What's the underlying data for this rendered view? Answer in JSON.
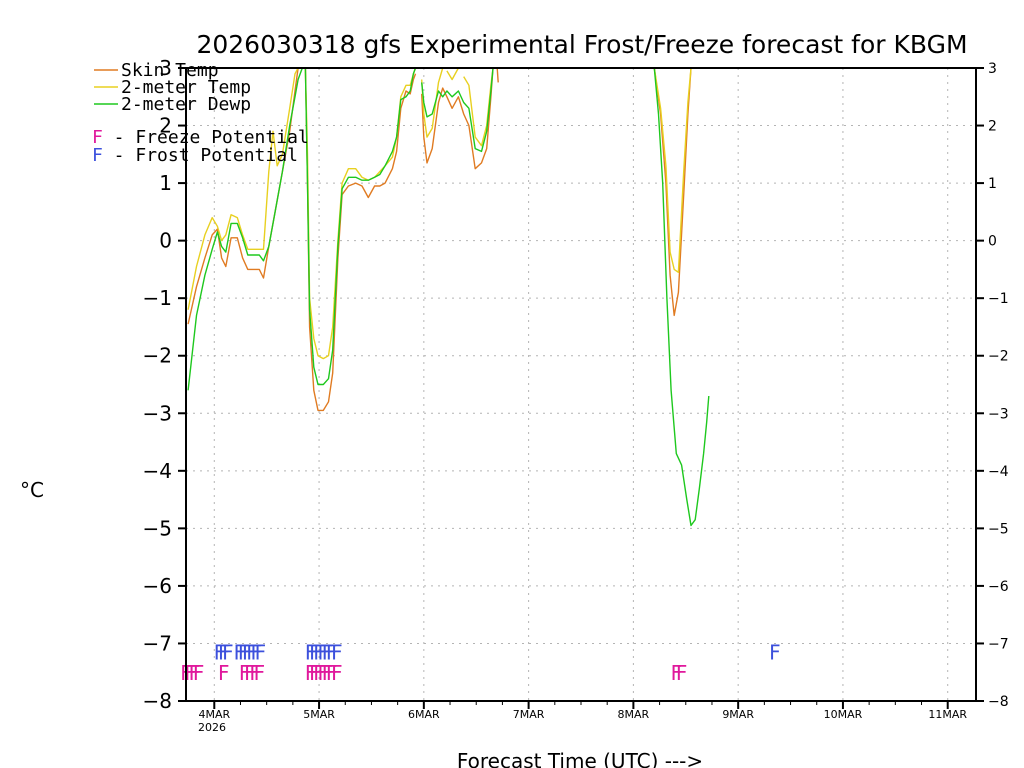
{
  "chart_data": {
    "type": "line",
    "title": "2026030318 gfs Experimental Frost/Freeze forecast for KBGM",
    "xlabel": "Forecast Time (UTC) --->",
    "ylabel": "°C",
    "ylim": [
      -8,
      3
    ],
    "xlim": [
      -0.27,
      7.27
    ],
    "yticks": [
      3,
      2,
      1,
      0,
      -1,
      -2,
      -3,
      -4,
      -5,
      -6,
      -7,
      -8
    ],
    "ytick_labels": [
      "3",
      "2",
      "1",
      "0",
      "−1",
      "−2",
      "−3",
      "−4",
      "−5",
      "−6",
      "−7",
      "−8"
    ],
    "xticks": [
      0,
      1,
      2,
      3,
      4,
      5,
      6,
      7
    ],
    "xtick_labels": [
      "4MAR",
      "5MAR",
      "6MAR",
      "7MAR",
      "8MAR",
      "9MAR",
      "10MAR",
      "11MAR"
    ],
    "x_year_label": "2026",
    "grid": true,
    "legend": [
      {
        "label": "Skin Temp",
        "color": "#e07b22"
      },
      {
        "label": "2-meter Temp",
        "color": "#e8d020"
      },
      {
        "label": "2-meter Dewp",
        "color": "#1ec81e"
      }
    ],
    "potential_legend": [
      {
        "letter": "F",
        "text": " - Freeze Potential",
        "color": "#e0189c"
      },
      {
        "letter": "F",
        "text": " - Frost Potential",
        "color": "#3c50dc"
      }
    ],
    "series": [
      {
        "name": "Skin Temp",
        "color": "#e07b22",
        "segments": [
          [
            [
              -0.25,
              -1.45
            ],
            [
              -0.17,
              -0.8
            ],
            [
              -0.09,
              -0.3
            ],
            [
              -0.02,
              0.1
            ],
            [
              0.03,
              0.2
            ],
            [
              0.07,
              -0.3
            ],
            [
              0.11,
              -0.45
            ],
            [
              0.16,
              0.05
            ],
            [
              0.22,
              0.05
            ],
            [
              0.27,
              -0.3
            ],
            [
              0.32,
              -0.5
            ],
            [
              0.38,
              -0.5
            ],
            [
              0.43,
              -0.5
            ],
            [
              0.47,
              -0.65
            ],
            [
              0.52,
              -0.1
            ],
            [
              0.58,
              0.5
            ],
            [
              0.65,
              1.2
            ],
            [
              0.72,
              1.9
            ],
            [
              0.77,
              2.6
            ],
            [
              0.8,
              3.0
            ]
          ],
          [
            [
              0.87,
              3.0
            ],
            [
              0.89,
              1.0
            ],
            [
              0.91,
              -1.5
            ],
            [
              0.95,
              -2.6
            ],
            [
              0.99,
              -2.95
            ],
            [
              1.04,
              -2.95
            ],
            [
              1.09,
              -2.8
            ],
            [
              1.13,
              -2.3
            ],
            [
              1.18,
              -0.3
            ],
            [
              1.22,
              0.8
            ],
            [
              1.28,
              0.95
            ],
            [
              1.35,
              1.0
            ],
            [
              1.41,
              0.95
            ],
            [
              1.47,
              0.75
            ],
            [
              1.53,
              0.95
            ],
            [
              1.58,
              0.95
            ],
            [
              1.63,
              1.0
            ],
            [
              1.7,
              1.25
            ],
            [
              1.74,
              1.55
            ],
            [
              1.78,
              2.3
            ],
            [
              1.83,
              2.6
            ],
            [
              1.87,
              2.55
            ],
            [
              1.9,
              2.8
            ],
            [
              1.92,
              2.9
            ]
          ],
          [
            [
              1.98,
              2.55
            ],
            [
              2.0,
              1.8
            ],
            [
              2.03,
              1.35
            ],
            [
              2.08,
              1.6
            ],
            [
              2.14,
              2.4
            ],
            [
              2.18,
              2.65
            ],
            [
              2.22,
              2.5
            ],
            [
              2.27,
              2.3
            ],
            [
              2.33,
              2.5
            ],
            [
              2.38,
              2.2
            ],
            [
              2.43,
              2.0
            ],
            [
              2.49,
              1.25
            ],
            [
              2.55,
              1.35
            ],
            [
              2.6,
              1.6
            ],
            [
              2.64,
              2.5
            ],
            [
              2.66,
              3.0
            ]
          ],
          [
            [
              2.7,
              3.0
            ],
            [
              2.71,
              2.75
            ]
          ],
          [
            [
              4.2,
              3.0
            ],
            [
              4.26,
              2.2
            ],
            [
              4.31,
              1.0
            ],
            [
              4.35,
              -0.6
            ],
            [
              4.39,
              -1.3
            ],
            [
              4.43,
              -0.9
            ],
            [
              4.48,
              0.8
            ],
            [
              4.52,
              2.2
            ],
            [
              4.55,
              3.0
            ]
          ]
        ]
      },
      {
        "name": "2-meter Temp",
        "color": "#e8d020",
        "segments": [
          [
            [
              -0.25,
              -1.2
            ],
            [
              -0.17,
              -0.45
            ],
            [
              -0.09,
              0.1
            ],
            [
              -0.02,
              0.4
            ],
            [
              0.03,
              0.25
            ],
            [
              0.07,
              0.0
            ],
            [
              0.11,
              0.1
            ],
            [
              0.16,
              0.45
            ],
            [
              0.22,
              0.4
            ],
            [
              0.27,
              0.1
            ],
            [
              0.32,
              -0.15
            ],
            [
              0.38,
              -0.15
            ],
            [
              0.43,
              -0.15
            ],
            [
              0.47,
              -0.15
            ],
            [
              0.52,
              1.2
            ],
            [
              0.56,
              1.9
            ],
            [
              0.6,
              1.3
            ],
            [
              0.65,
              1.5
            ],
            [
              0.72,
              2.3
            ],
            [
              0.77,
              2.9
            ],
            [
              0.8,
              3.0
            ]
          ],
          [
            [
              0.87,
              3.0
            ],
            [
              0.89,
              1.5
            ],
            [
              0.91,
              -1.0
            ],
            [
              0.95,
              -1.7
            ],
            [
              0.99,
              -2.0
            ],
            [
              1.04,
              -2.05
            ],
            [
              1.09,
              -2.0
            ],
            [
              1.13,
              -1.5
            ],
            [
              1.18,
              0.0
            ],
            [
              1.22,
              1.0
            ],
            [
              1.28,
              1.25
            ],
            [
              1.35,
              1.25
            ],
            [
              1.41,
              1.1
            ],
            [
              1.47,
              1.05
            ],
            [
              1.53,
              1.1
            ],
            [
              1.58,
              1.2
            ],
            [
              1.63,
              1.3
            ],
            [
              1.7,
              1.45
            ],
            [
              1.74,
              1.8
            ],
            [
              1.78,
              2.5
            ],
            [
              1.83,
              2.7
            ],
            [
              1.87,
              2.7
            ],
            [
              1.9,
              2.9
            ],
            [
              1.92,
              3.0
            ]
          ],
          [
            [
              1.98,
              2.8
            ],
            [
              2.0,
              2.2
            ],
            [
              2.03,
              1.8
            ],
            [
              2.08,
              1.95
            ],
            [
              2.14,
              2.75
            ],
            [
              2.18,
              3.0
            ]
          ],
          [
            [
              2.22,
              2.95
            ],
            [
              2.27,
              2.8
            ],
            [
              2.33,
              3.0
            ]
          ],
          [
            [
              2.38,
              2.85
            ],
            [
              2.43,
              2.7
            ],
            [
              2.49,
              1.8
            ],
            [
              2.55,
              1.65
            ],
            [
              2.6,
              2.0
            ],
            [
              2.64,
              2.7
            ],
            [
              2.66,
              3.0
            ]
          ],
          [
            [
              4.2,
              3.0
            ],
            [
              4.26,
              2.3
            ],
            [
              4.31,
              1.3
            ],
            [
              4.35,
              -0.2
            ],
            [
              4.39,
              -0.5
            ],
            [
              4.43,
              -0.55
            ],
            [
              4.48,
              1.2
            ],
            [
              4.52,
              2.4
            ],
            [
              4.55,
              3.0
            ]
          ]
        ]
      },
      {
        "name": "2-meter Dewp",
        "color": "#1ec81e",
        "segments": [
          [
            [
              -0.25,
              -2.6
            ],
            [
              -0.17,
              -1.3
            ],
            [
              -0.09,
              -0.6
            ],
            [
              -0.02,
              -0.15
            ],
            [
              0.03,
              0.15
            ],
            [
              0.07,
              -0.1
            ],
            [
              0.11,
              -0.2
            ],
            [
              0.16,
              0.3
            ],
            [
              0.22,
              0.3
            ],
            [
              0.27,
              0.05
            ],
            [
              0.32,
              -0.25
            ],
            [
              0.38,
              -0.25
            ],
            [
              0.43,
              -0.25
            ],
            [
              0.47,
              -0.35
            ],
            [
              0.52,
              -0.1
            ],
            [
              0.58,
              0.5
            ],
            [
              0.65,
              1.2
            ],
            [
              0.72,
              2.0
            ],
            [
              0.77,
              2.5
            ],
            [
              0.8,
              2.8
            ],
            [
              0.84,
              3.0
            ]
          ],
          [
            [
              0.87,
              3.0
            ],
            [
              0.89,
              1.0
            ],
            [
              0.91,
              -1.2
            ],
            [
              0.95,
              -2.2
            ],
            [
              0.99,
              -2.5
            ],
            [
              1.04,
              -2.5
            ],
            [
              1.09,
              -2.4
            ],
            [
              1.13,
              -1.9
            ],
            [
              1.18,
              -0.1
            ],
            [
              1.22,
              0.9
            ],
            [
              1.28,
              1.1
            ],
            [
              1.35,
              1.1
            ],
            [
              1.41,
              1.05
            ],
            [
              1.47,
              1.05
            ],
            [
              1.53,
              1.1
            ],
            [
              1.58,
              1.15
            ],
            [
              1.63,
              1.3
            ],
            [
              1.7,
              1.55
            ],
            [
              1.74,
              1.8
            ],
            [
              1.78,
              2.45
            ],
            [
              1.83,
              2.5
            ],
            [
              1.87,
              2.6
            ],
            [
              1.9,
              2.9
            ],
            [
              1.92,
              3.0
            ]
          ],
          [
            [
              1.98,
              2.75
            ],
            [
              2.0,
              2.4
            ],
            [
              2.03,
              2.15
            ],
            [
              2.08,
              2.2
            ],
            [
              2.14,
              2.6
            ],
            [
              2.18,
              2.5
            ],
            [
              2.22,
              2.6
            ],
            [
              2.27,
              2.5
            ],
            [
              2.33,
              2.6
            ],
            [
              2.38,
              2.4
            ],
            [
              2.43,
              2.3
            ],
            [
              2.49,
              1.6
            ],
            [
              2.55,
              1.55
            ],
            [
              2.6,
              1.9
            ],
            [
              2.64,
              2.6
            ],
            [
              2.66,
              3.0
            ]
          ],
          [
            [
              4.2,
              3.0
            ],
            [
              4.24,
              2.2
            ],
            [
              4.28,
              1.0
            ],
            [
              4.32,
              -1.0
            ],
            [
              4.36,
              -2.6
            ],
            [
              4.41,
              -3.7
            ],
            [
              4.46,
              -3.9
            ],
            [
              4.51,
              -4.5
            ],
            [
              4.55,
              -4.95
            ],
            [
              4.59,
              -4.85
            ],
            [
              4.63,
              -4.3
            ],
            [
              4.67,
              -3.7
            ],
            [
              4.7,
              -3.15
            ],
            [
              4.72,
              -2.7
            ]
          ]
        ]
      }
    ],
    "freeze_potential_marks": [
      -0.27,
      -0.23,
      -0.19,
      -0.15,
      0.09,
      0.29,
      0.34,
      0.39,
      0.43,
      0.92,
      0.96,
      1.0,
      1.04,
      1.08,
      1.12,
      1.17,
      4.41,
      4.46
    ],
    "frost_potential_marks": [
      0.05,
      0.09,
      0.13,
      0.24,
      0.28,
      0.32,
      0.36,
      0.4,
      0.44,
      0.92,
      0.96,
      1.0,
      1.04,
      1.08,
      1.12,
      1.17,
      5.35
    ],
    "freeze_mark_level": -7.5,
    "frost_mark_level": -7.14,
    "mark_letter": "F"
  }
}
